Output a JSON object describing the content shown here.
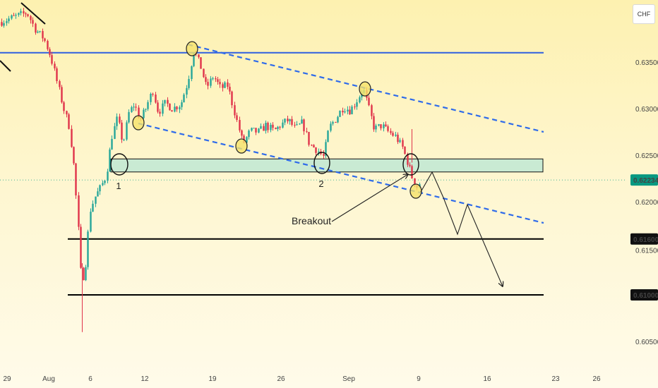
{
  "currency": "CHF",
  "colors": {
    "up": "#26a69a",
    "down": "#e0334a",
    "channel": "#2f6bea",
    "resistance": "#2f5fe0",
    "zone": "#bfe8d4",
    "price_tag": "#089981"
  },
  "chart_data": {
    "type": "candlestick",
    "title": "",
    "xlabel": "",
    "ylabel": "",
    "ylim": [
      0.6037,
      0.6407
    ],
    "y_ticks": [
      "0.63500",
      "0.63000",
      "0.62500",
      "0.62000",
      "0.61500",
      "0.60500"
    ],
    "x_ticks": [
      "29",
      "Aug",
      "6",
      "12",
      "19",
      "26",
      "Sep",
      "9",
      "16",
      "23",
      "26"
    ],
    "price_label": "0.62234",
    "price_level": 0.62234,
    "support_levels": [
      {
        "label": "0.61600",
        "value": 0.616
      },
      {
        "label": "0.61000",
        "value": 0.61
      }
    ],
    "resistance_level": 0.636,
    "zone": [
      0.6232,
      0.6246
    ],
    "annotations": {
      "touch_1": "1",
      "touch_2": "2",
      "breakout": "Breakout"
    },
    "grid": false
  }
}
